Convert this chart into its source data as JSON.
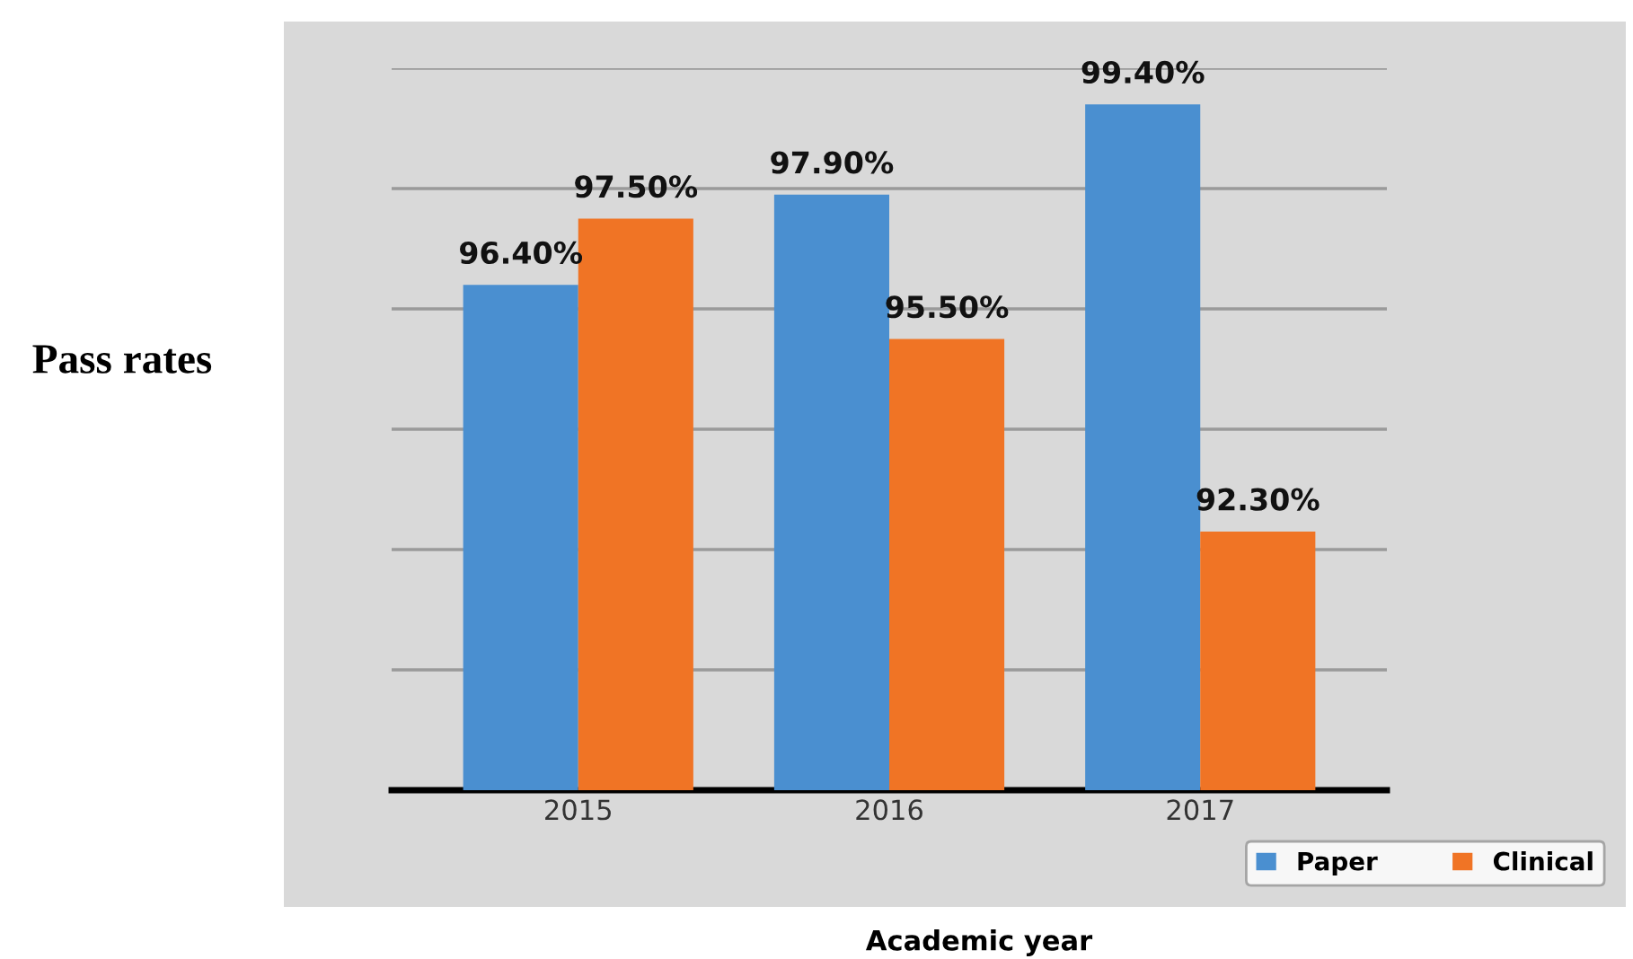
{
  "chart_data": {
    "type": "bar",
    "xlabel": "Academic year",
    "ylabel": "Pass rates",
    "categories": [
      "2015",
      "2016",
      "2017"
    ],
    "series": [
      {
        "name": "Paper",
        "color": "#4a8fd0",
        "values": [
          96.4,
          97.9,
          99.4
        ],
        "value_labels": [
          "96.40%",
          "97.90%",
          "99.40%"
        ]
      },
      {
        "name": "Clinical",
        "color": "#f07425",
        "values": [
          97.5,
          95.5,
          92.3
        ],
        "value_labels": [
          "97.50%",
          "95.50%",
          "92.30%"
        ]
      }
    ],
    "ylim": [
      88,
      100
    ],
    "yticks": [
      {
        "value": 88,
        "label": null
      },
      {
        "value": 90,
        "label": null
      },
      {
        "value": 92,
        "label": null
      },
      {
        "value": 94,
        "label": null
      },
      {
        "value": 96,
        "label": null
      },
      {
        "value": 98,
        "label": null
      },
      {
        "value": 100,
        "label": null
      }
    ],
    "tick_labels": "x",
    "grid": "y",
    "legend": "bottom right"
  }
}
